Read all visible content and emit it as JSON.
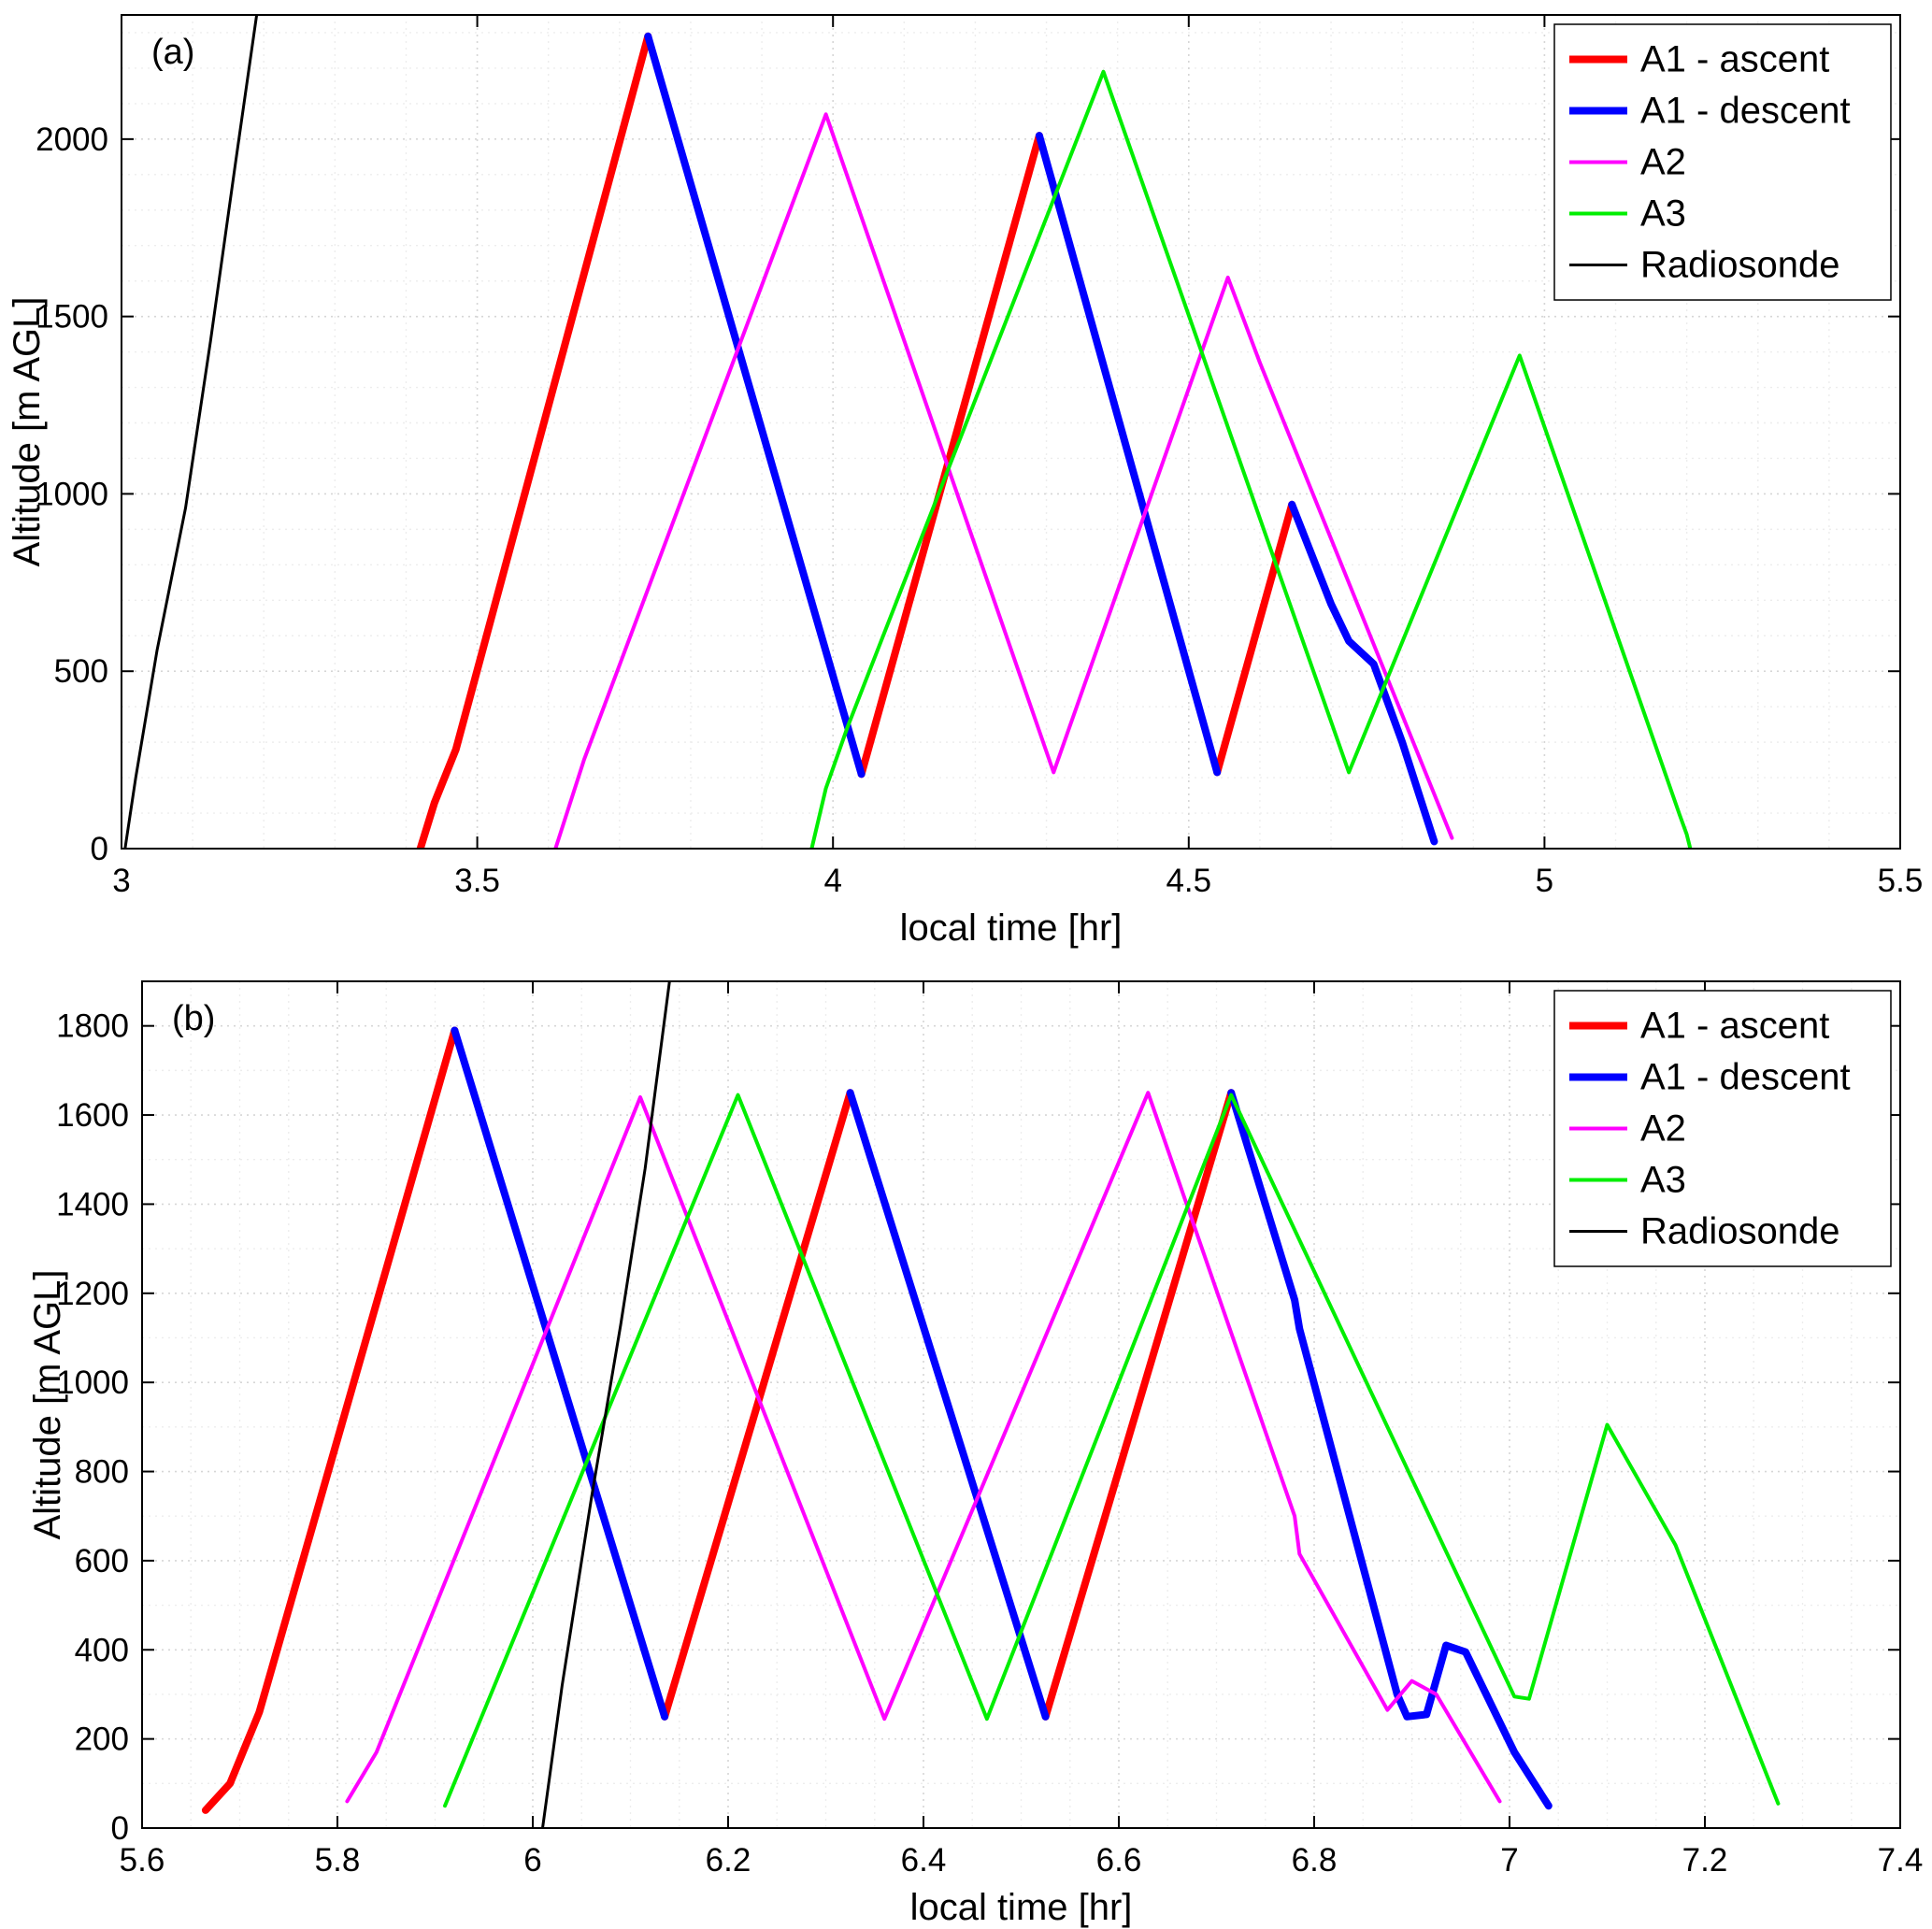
{
  "figure_title": "",
  "legend_labels": [
    "A1 - ascent",
    "A1 - descent",
    "A2",
    "A3",
    "Radiosonde"
  ],
  "chart_data": [
    {
      "type": "line",
      "panel_label": "(a)",
      "xlabel": "local time [hr]",
      "ylabel": "Altitude [m AGL]",
      "xlim": [
        3,
        5.5
      ],
      "ylim": [
        0,
        2350
      ],
      "xticks": [
        3,
        3.5,
        4,
        4.5,
        5,
        5.5
      ],
      "xtick_labels": [
        "3",
        "3.5",
        "4",
        "4.5",
        "5",
        "5.5"
      ],
      "yticks": [
        0,
        500,
        1000,
        1500,
        2000
      ],
      "ytick_labels": [
        "0",
        "500",
        "1000",
        "1500",
        "2000"
      ],
      "x_minor": 0.1,
      "y_minor": 100,
      "grid": true,
      "legend_position": "top-right",
      "series": [
        {
          "name": "A1 - ascent",
          "color": "#ff0000",
          "width": 8,
          "segments": [
            [
              [
                3.42,
                0
              ],
              [
                3.44,
                130
              ],
              [
                3.47,
                280
              ],
              [
                3.74,
                2290
              ]
            ],
            [
              [
                4.04,
                210
              ],
              [
                4.29,
                2010
              ]
            ],
            [
              [
                4.54,
                215
              ],
              [
                4.645,
                970
              ]
            ]
          ]
        },
        {
          "name": "A1 - descent",
          "color": "#0000ff",
          "width": 8,
          "segments": [
            [
              [
                3.74,
                2290
              ],
              [
                4.04,
                210
              ]
            ],
            [
              [
                4.29,
                2010
              ],
              [
                4.54,
                215
              ]
            ],
            [
              [
                4.645,
                970
              ],
              [
                4.7,
                690
              ],
              [
                4.725,
                585
              ],
              [
                4.76,
                520
              ],
              [
                4.8,
                300
              ],
              [
                4.845,
                20
              ]
            ]
          ]
        },
        {
          "name": "A2",
          "color": "#ff00ff",
          "width": 4,
          "segments": [
            [
              [
                3.61,
                0
              ],
              [
                3.65,
                250
              ],
              [
                3.99,
                2070
              ],
              [
                4.31,
                215
              ],
              [
                4.555,
                1610
              ],
              [
                4.6,
                1370
              ],
              [
                4.87,
                30
              ]
            ]
          ]
        },
        {
          "name": "A3",
          "color": "#00ee00",
          "width": 4,
          "segments": [
            [
              [
                3.97,
                0
              ],
              [
                3.99,
                170
              ],
              [
                4.02,
                340
              ],
              [
                4.38,
                2190
              ],
              [
                4.725,
                215
              ],
              [
                4.965,
                1390
              ],
              [
                5.19,
                95
              ],
              [
                5.2,
                40
              ],
              [
                5.205,
                0
              ]
            ]
          ]
        },
        {
          "name": "Radiosonde",
          "color": "#000000",
          "width": 3,
          "segments": [
            [
              [
                3.005,
                0
              ],
              [
                3.02,
                200
              ],
              [
                3.05,
                560
              ],
              [
                3.09,
                960
              ],
              [
                3.125,
                1430
              ],
              [
                3.16,
                1930
              ],
              [
                3.19,
                2350
              ]
            ]
          ]
        }
      ]
    },
    {
      "type": "line",
      "panel_label": "(b)",
      "xlabel": "local time [hr]",
      "ylabel": "Altitude [m AGL]",
      "xlim": [
        5.6,
        7.4
      ],
      "ylim": [
        0,
        1900
      ],
      "xticks": [
        5.6,
        5.8,
        6,
        6.2,
        6.4,
        6.6,
        6.8,
        7,
        7.2,
        7.4
      ],
      "xtick_labels": [
        "5.6",
        "5.8",
        "6",
        "6.2",
        "6.4",
        "6.6",
        "6.8",
        "7",
        "7.2",
        "7.4"
      ],
      "yticks": [
        0,
        200,
        400,
        600,
        800,
        1000,
        1200,
        1400,
        1600,
        1800
      ],
      "ytick_labels": [
        "0",
        "200",
        "400",
        "600",
        "800",
        "1000",
        "1200",
        "1400",
        "1600",
        "1800"
      ],
      "x_minor": 0.05,
      "y_minor": 100,
      "grid": true,
      "legend_position": "top-right",
      "series": [
        {
          "name": "A1 - ascent",
          "color": "#ff0000",
          "width": 8,
          "segments": [
            [
              [
                5.665,
                40
              ],
              [
                5.69,
                100
              ],
              [
                5.72,
                260
              ],
              [
                5.92,
                1790
              ]
            ],
            [
              [
                6.135,
                250
              ],
              [
                6.325,
                1650
              ]
            ],
            [
              [
                6.525,
                250
              ],
              [
                6.715,
                1650
              ]
            ]
          ]
        },
        {
          "name": "A1 - descent",
          "color": "#0000ff",
          "width": 8,
          "segments": [
            [
              [
                5.92,
                1790
              ],
              [
                6.135,
                250
              ]
            ],
            [
              [
                6.325,
                1650
              ],
              [
                6.525,
                250
              ]
            ],
            [
              [
                6.715,
                1650
              ],
              [
                6.78,
                1185
              ],
              [
                6.785,
                1120
              ],
              [
                6.885,
                300
              ],
              [
                6.895,
                250
              ],
              [
                6.915,
                255
              ],
              [
                6.935,
                410
              ],
              [
                6.955,
                395
              ],
              [
                7.005,
                170
              ],
              [
                7.04,
                50
              ]
            ]
          ]
        },
        {
          "name": "A2",
          "color": "#ff00ff",
          "width": 4,
          "segments": [
            [
              [
                5.81,
                60
              ],
              [
                5.84,
                170
              ],
              [
                6.11,
                1640
              ],
              [
                6.36,
                245
              ],
              [
                6.63,
                1650
              ],
              [
                6.78,
                700
              ],
              [
                6.785,
                615
              ],
              [
                6.875,
                265
              ],
              [
                6.9,
                330
              ],
              [
                6.925,
                300
              ],
              [
                6.99,
                60
              ]
            ]
          ]
        },
        {
          "name": "A3",
          "color": "#00ee00",
          "width": 4,
          "segments": [
            [
              [
                5.91,
                50
              ],
              [
                6.21,
                1645
              ],
              [
                6.465,
                245
              ],
              [
                6.715,
                1645
              ],
              [
                7.005,
                295
              ],
              [
                7.02,
                290
              ],
              [
                7.1,
                905
              ],
              [
                7.17,
                635
              ],
              [
                7.275,
                55
              ]
            ]
          ]
        },
        {
          "name": "Radiosonde",
          "color": "#000000",
          "width": 3,
          "segments": [
            [
              [
                6.01,
                0
              ],
              [
                6.03,
                320
              ],
              [
                6.06,
                740
              ],
              [
                6.09,
                1130
              ],
              [
                6.115,
                1480
              ],
              [
                6.14,
                1900
              ]
            ]
          ]
        }
      ]
    }
  ]
}
